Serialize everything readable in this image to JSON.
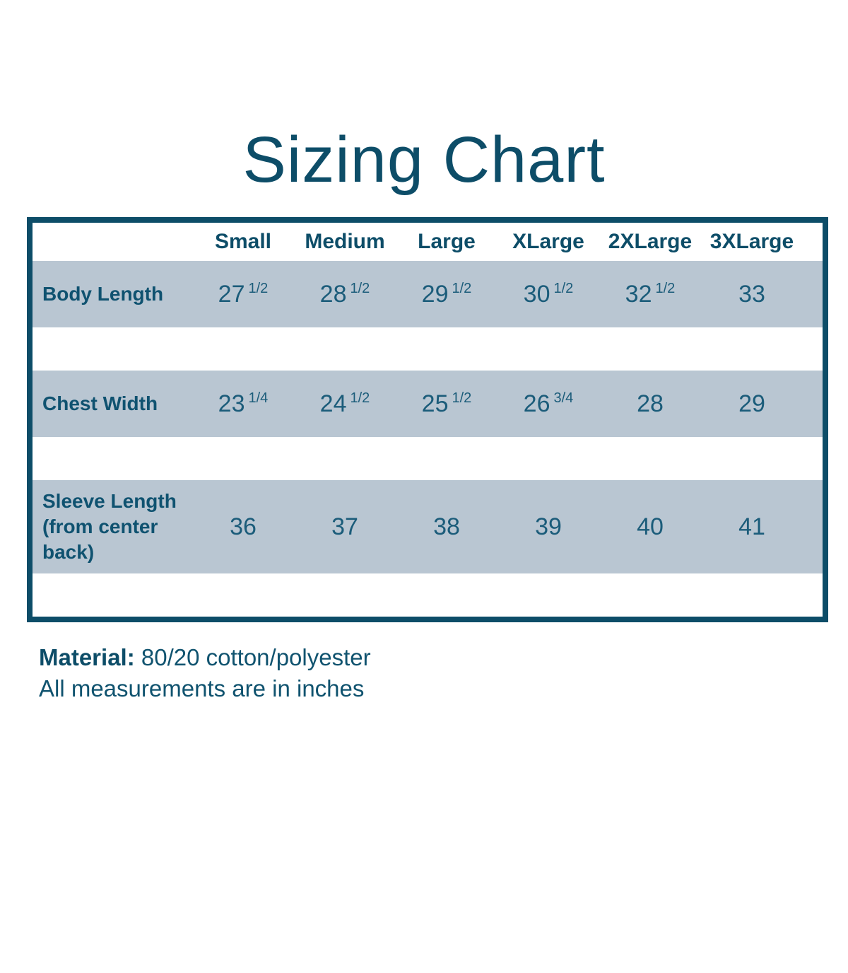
{
  "title": "Sizing Chart",
  "table": {
    "columns": [
      "Small",
      "Medium",
      "Large",
      "XLarge",
      "2XLarge",
      "3XLarge"
    ],
    "rows": [
      {
        "label": "Body Length",
        "cells": [
          {
            "n": "27",
            "f": "1/2"
          },
          {
            "n": "28",
            "f": "1/2"
          },
          {
            "n": "29",
            "f": "1/2"
          },
          {
            "n": "30",
            "f": "1/2"
          },
          {
            "n": "32",
            "f": "1/2"
          },
          {
            "n": "33",
            "f": ""
          }
        ]
      },
      {
        "label": "Chest Width",
        "cells": [
          {
            "n": "23",
            "f": "1/4"
          },
          {
            "n": "24",
            "f": "1/2"
          },
          {
            "n": "25",
            "f": "1/2"
          },
          {
            "n": "26",
            "f": "3/4"
          },
          {
            "n": "28",
            "f": ""
          },
          {
            "n": "29",
            "f": ""
          }
        ]
      },
      {
        "label": "Sleeve Length (from center back)",
        "cells": [
          {
            "n": "36",
            "f": ""
          },
          {
            "n": "37",
            "f": ""
          },
          {
            "n": "38",
            "f": ""
          },
          {
            "n": "39",
            "f": ""
          },
          {
            "n": "40",
            "f": ""
          },
          {
            "n": "41",
            "f": ""
          }
        ]
      }
    ]
  },
  "footer": {
    "material_label": "Material:",
    "material_value": "80/20 cotton/polyester",
    "note": "All measurements are in inches"
  },
  "colors": {
    "teal_dark": "#0d4d68",
    "teal_text": "#1b5c7a",
    "row_band": "#b9c6d2",
    "background": "#ffffff"
  },
  "chart_data": {
    "type": "table",
    "title": "Sizing Chart",
    "columns": [
      "Small",
      "Medium",
      "Large",
      "XLarge",
      "2XLarge",
      "3XLarge"
    ],
    "rows": [
      {
        "label": "Body Length",
        "values": [
          "27 1/2",
          "28 1/2",
          "29 1/2",
          "30 1/2",
          "32 1/2",
          "33"
        ]
      },
      {
        "label": "Chest Width",
        "values": [
          "23 1/4",
          "24 1/2",
          "25 1/2",
          "26 3/4",
          "28",
          "29"
        ]
      },
      {
        "label": "Sleeve Length (from center back)",
        "values": [
          "36",
          "37",
          "38",
          "39",
          "40",
          "41"
        ]
      }
    ],
    "units": "inches",
    "notes": [
      "Material: 80/20 cotton/polyester",
      "All measurements are in inches"
    ]
  }
}
